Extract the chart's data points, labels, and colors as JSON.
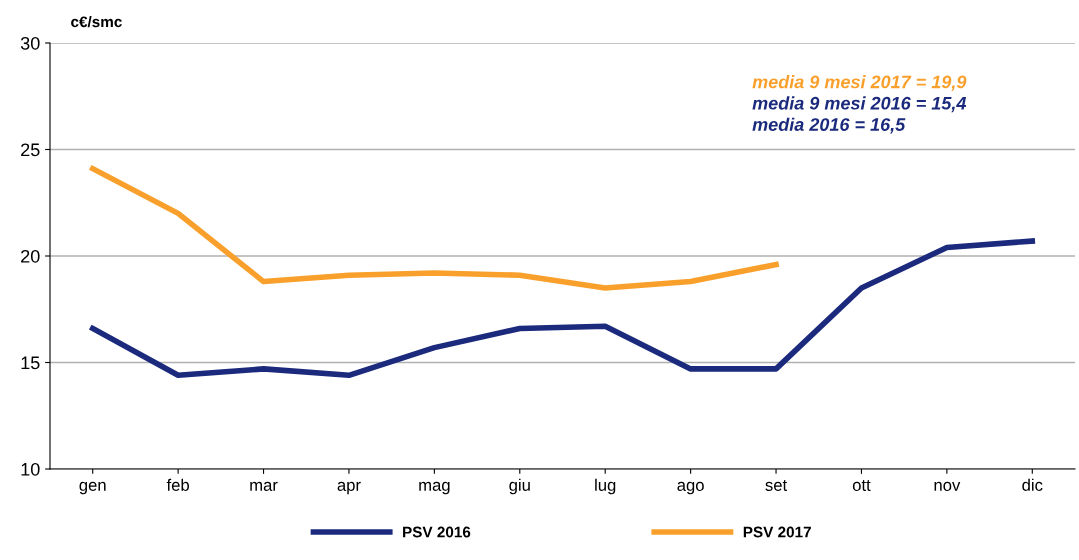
{
  "chart_data": {
    "type": "line",
    "ylabel": "c€/smc",
    "categories": [
      "gen",
      "feb",
      "mar",
      "apr",
      "mag",
      "giu",
      "lug",
      "ago",
      "set",
      "ott",
      "nov",
      "dic"
    ],
    "series": [
      {
        "name": "PSV 2016",
        "color": "#1b2a7c",
        "values": [
          16.6,
          14.4,
          14.7,
          14.4,
          15.7,
          16.6,
          16.7,
          14.7,
          14.7,
          18.5,
          20.4,
          20.7
        ]
      },
      {
        "name": "PSV 2017",
        "color": "#f9a02c",
        "values": [
          24.1,
          22.0,
          18.8,
          19.1,
          19.2,
          19.1,
          18.5,
          18.8,
          19.6,
          null,
          null,
          null
        ]
      }
    ],
    "ylim": [
      10,
      30
    ],
    "yticks": [
      10,
      15,
      20,
      25,
      30
    ],
    "grid": "y",
    "legend": "bottom",
    "marker": "none",
    "line_style": "solid",
    "annotations": [
      "media 9 mesi 2017 = 19,9",
      "media 9 mesi 2016 = 15,4",
      "media 2016 = 16,5"
    ]
  }
}
